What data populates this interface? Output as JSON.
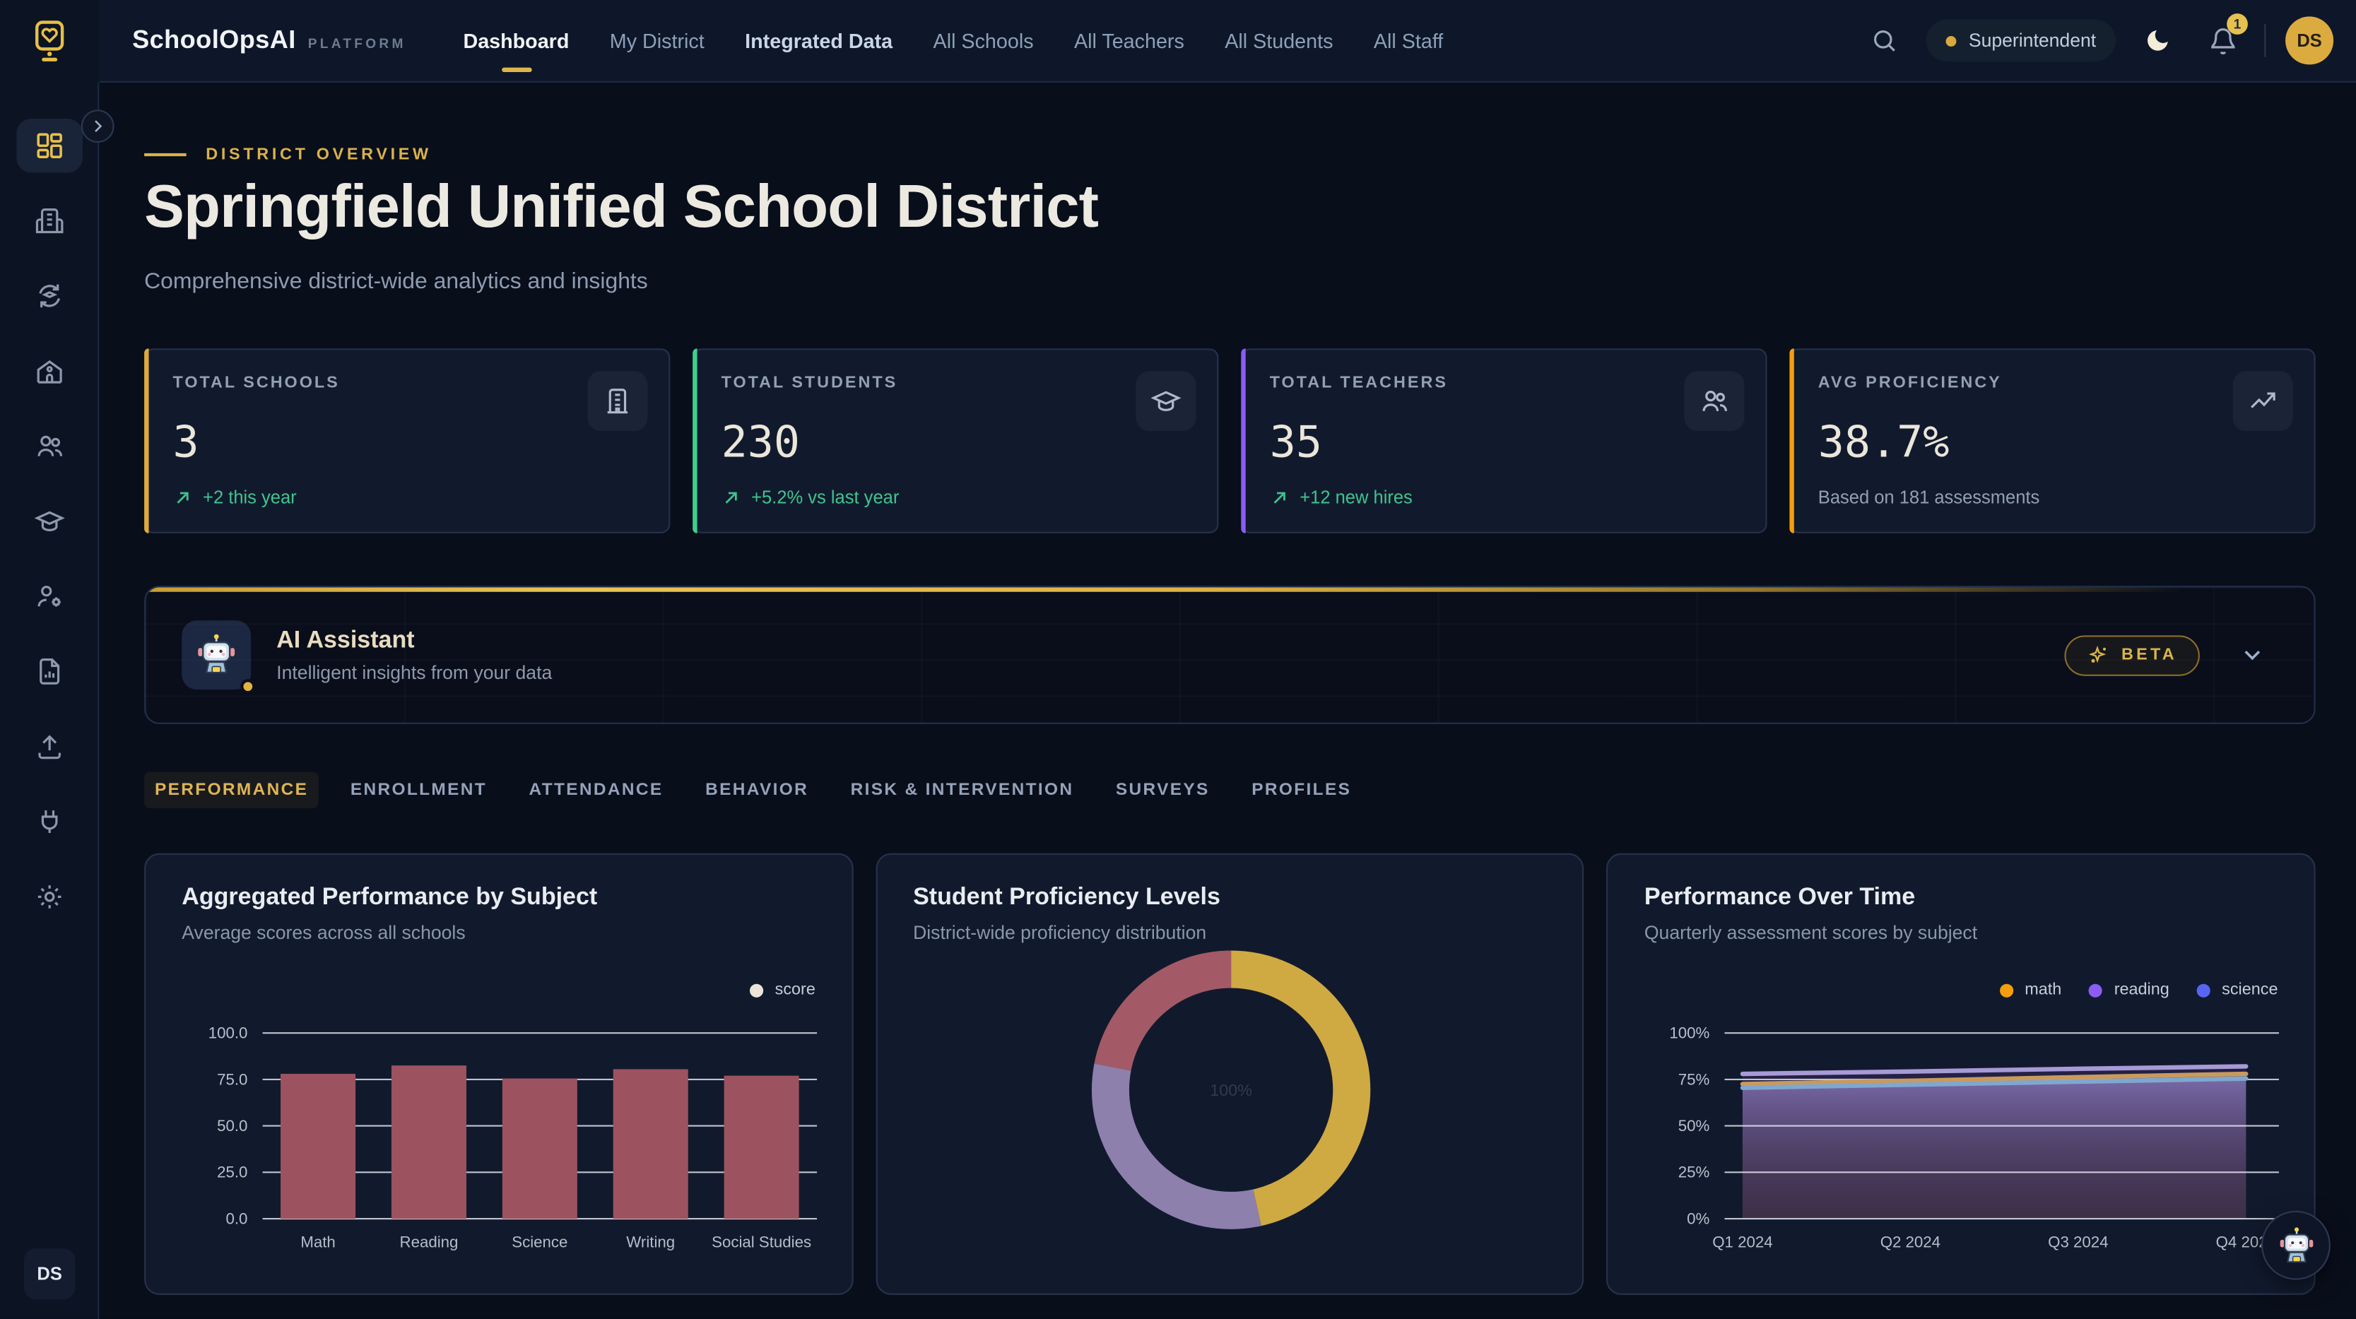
{
  "brand": {
    "name": "SchoolOpsAI",
    "tag": "PLATFORM"
  },
  "nav": {
    "items": [
      {
        "label": "Dashboard",
        "active": true
      },
      {
        "label": "My District"
      },
      {
        "label": "Integrated Data",
        "emphasis": true
      },
      {
        "label": "All Schools"
      },
      {
        "label": "All Teachers"
      },
      {
        "label": "All Students"
      },
      {
        "label": "All Staff"
      }
    ]
  },
  "topbar": {
    "role_badge": "Superintendent",
    "notification_count": "1",
    "avatar_initials": "DS"
  },
  "sidebar": {
    "footer_initials": "DS",
    "icons": [
      "dashboard",
      "district-buildings",
      "data-sync",
      "school",
      "people",
      "students",
      "staff-settings",
      "reports",
      "upload",
      "integrations",
      "settings"
    ]
  },
  "page_header": {
    "eyebrow": "DISTRICT OVERVIEW",
    "title": "Springfield Unified School District",
    "subtitle": "Comprehensive district-wide analytics and insights"
  },
  "stats": [
    {
      "label": "TOTAL SCHOOLS",
      "value": "3",
      "trend": "+2 this year",
      "trend_type": "positive",
      "accent": "#dfa93f",
      "icon": "building-icon"
    },
    {
      "label": "TOTAL STUDENTS",
      "value": "230",
      "trend": "+5.2% vs last year",
      "trend_type": "positive",
      "accent": "#3ecf8e",
      "icon": "graduation-cap-icon"
    },
    {
      "label": "TOTAL TEACHERS",
      "value": "35",
      "trend": "+12 new hires",
      "trend_type": "positive",
      "accent": "#8b5cf6",
      "icon": "users-icon"
    },
    {
      "label": "AVG PROFICIENCY",
      "value": "38.7%",
      "trend": "Based on 181 assessments",
      "trend_type": "neutral",
      "accent": "#f59e0b",
      "icon": "trending-up-icon"
    }
  ],
  "ai_assistant": {
    "title": "AI Assistant",
    "subtitle": "Intelligent insights from your data",
    "badge": "BETA"
  },
  "tabs": [
    {
      "label": "PERFORMANCE",
      "active": true
    },
    {
      "label": "ENROLLMENT"
    },
    {
      "label": "ATTENDANCE"
    },
    {
      "label": "BEHAVIOR"
    },
    {
      "label": "RISK & INTERVENTION"
    },
    {
      "label": "SURVEYS"
    },
    {
      "label": "PROFILES"
    }
  ],
  "chart_data": [
    {
      "type": "bar",
      "title": "Aggregated Performance by Subject",
      "subtitle": "Average scores across all schools",
      "legend": {
        "label": "score",
        "dot_color": "#ece4d8"
      },
      "categories": [
        "Math",
        "Reading",
        "Science",
        "Writing",
        "Social Studies"
      ],
      "values": [
        78,
        82.5,
        75.5,
        80.5,
        77
      ],
      "ylim": [
        0,
        100
      ],
      "yticks": [
        "100.0",
        "75.0",
        "50.0",
        "25.0",
        "0.0"
      ],
      "bar_color": "#9d5260",
      "grid": true,
      "legend_position": "top-right"
    },
    {
      "type": "pie",
      "title": "Student Proficiency Levels",
      "subtitle": "District-wide proficiency distribution",
      "donut": true,
      "center_label": "100%",
      "slices": [
        {
          "value": 46.5,
          "color": "#cfa942"
        },
        {
          "value": 31.5,
          "color": "#8d80ad"
        },
        {
          "value": 22,
          "color": "#a35a66"
        }
      ]
    },
    {
      "type": "line",
      "title": "Performance Over Time",
      "subtitle": "Quarterly assessment scores by subject",
      "categories": [
        "Q1 2024",
        "Q2 2024",
        "Q3 2024",
        "Q4 2024"
      ],
      "series": [
        {
          "name": "math",
          "color": "#f59e0b",
          "line_color": "#c99a5e",
          "values": [
            72.5,
            74.3,
            76.2,
            78
          ]
        },
        {
          "name": "reading",
          "color": "#8b5cf6",
          "line_color": "#a79ad6",
          "values": [
            78,
            79.3,
            80.7,
            82
          ]
        },
        {
          "name": "science",
          "color": "#5865f2",
          "line_color": "#7fa7cf",
          "values": [
            70.5,
            72.2,
            73.8,
            75.5
          ]
        }
      ],
      "ylim": [
        0,
        100
      ],
      "yticks": [
        "100%",
        "75%",
        "50%",
        "25%",
        "0%"
      ],
      "grid": true,
      "legend_position": "top-right"
    }
  ]
}
